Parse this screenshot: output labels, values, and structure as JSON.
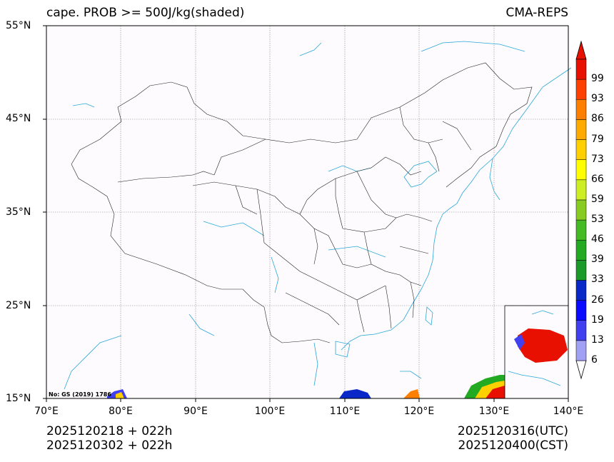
{
  "header": {
    "left_title": "cape. PROB >= 500J/kg(shaded)",
    "right_title": "CMA-REPS"
  },
  "axes": {
    "lat_labels": [
      "55°N",
      "45°N",
      "35°N",
      "25°N",
      "15°N"
    ],
    "lon_labels": [
      "70°E",
      "80°E",
      "90°E",
      "100°E",
      "110°E",
      "120°E",
      "130°E",
      "140°E"
    ]
  },
  "map": {
    "note": "No: GS (2019) 1786",
    "extent": {
      "lon_min": 70,
      "lon_max": 140,
      "lat_min": 15,
      "lat_max": 55
    }
  },
  "colorbar": {
    "levels": [
      "6",
      "13",
      "19",
      "26",
      "33",
      "39",
      "46",
      "53",
      "59",
      "66",
      "73",
      "79",
      "86",
      "93",
      "99"
    ],
    "colors": [
      "#a0a0f5",
      "#4040f0",
      "#0a0aff",
      "#0a28c8",
      "#1a9a2a",
      "#22aa22",
      "#44bb22",
      "#88cc22",
      "#ccee22",
      "#ffff00",
      "#ffd000",
      "#ffaa00",
      "#ff8000",
      "#ff4000",
      "#e81000"
    ]
  },
  "footer": {
    "init_line1": "2025120218  +  022h",
    "init_line2": "2025120302  +  022h",
    "valid_utc": "2025120316(UTC)",
    "valid_cst": "2025120400(CST)"
  },
  "style": {
    "coast_color": "#2aa8d8",
    "border_color": "#222222",
    "grid_color": "#888888",
    "bg_color": "#fdfbfd"
  }
}
